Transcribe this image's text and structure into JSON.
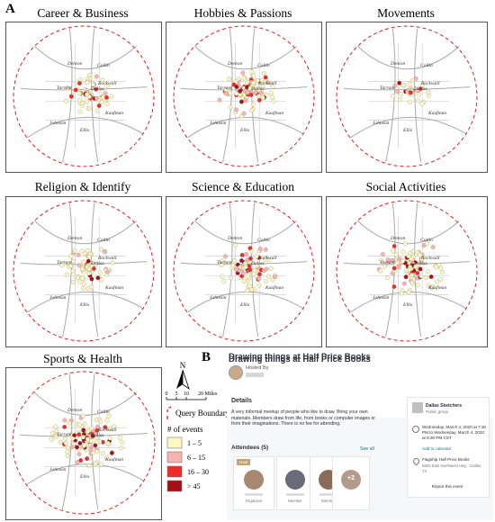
{
  "panel_labels": {
    "a": "A",
    "b": "B"
  },
  "maps": [
    {
      "id": "career",
      "title": "Career & Business"
    },
    {
      "id": "hobbies",
      "title": "Hobbies & Passions"
    },
    {
      "id": "movements",
      "title": "Movements"
    },
    {
      "id": "religion",
      "title": "Religion & Identify"
    },
    {
      "id": "science",
      "title": "Science & Education"
    },
    {
      "id": "social",
      "title": "Social Activities"
    },
    {
      "id": "sports",
      "title": "Sports & Health"
    }
  ],
  "place_labels": [
    "Denton",
    "Collin",
    "Rockwall",
    "Tarrant",
    "Dallas",
    "Kaufman",
    "Johnson",
    "Ellis"
  ],
  "legend": {
    "north": "N",
    "scale_ticks": [
      "0",
      "5",
      "10",
      "20 Miles"
    ],
    "query_boundary": "Query Boundary",
    "events_title": "# of events",
    "classes": [
      {
        "label": "1 – 5",
        "color": "#fdf7c0"
      },
      {
        "label": "6 – 15",
        "color": "#f7b3b0"
      },
      {
        "label": "16 – 30",
        "color": "#ee2a2a"
      },
      {
        "label": "> 45",
        "color": "#a50f15"
      }
    ]
  },
  "event": {
    "title": "Drawing things at Half Price Books",
    "hosted_by": "Hosted By",
    "details_heading": "Details",
    "details_text": "A very informal meetup of people who like to draw. Bring your own materials. Members draw from life, from books or computer images or from their imaginations. There is no fee for attending.",
    "attendees_heading": "Attendees (5)",
    "see_all": "See all",
    "host_badge": "Host",
    "attendee_roles": [
      "Organizer",
      "Member",
      "Member"
    ],
    "more_count": "+2",
    "group_name": "Dallas Sketchers",
    "group_type": "Public group",
    "date_text": "Wednesday, March 4, 2020 at 7:30 PM to Wednesday, March 4, 2020 at 8:30 PM CST",
    "add_to_calendar": "Add to calendar",
    "venue_name": "Flagship Half Price Books",
    "venue_address": "5803 East Northwest Hwy · Dallas, TX",
    "report": "Report this event"
  }
}
